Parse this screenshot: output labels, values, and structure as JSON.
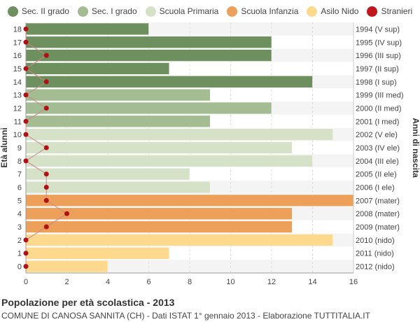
{
  "chart_data": {
    "type": "bar",
    "orientation": "horizontal",
    "title": "Popolazione per età scolastica - 2013",
    "subtitle": "COMUNE DI CANOSA SANNITA (CH) - Dati ISTAT 1° gennaio 2013 - Elaborazione TUTTITALIA.IT",
    "ylabel": "Età alunni",
    "y2label": "Anni di nascita",
    "xlim": [
      0,
      16
    ],
    "x_ticks": [
      0,
      2,
      4,
      6,
      8,
      10,
      12,
      14,
      16
    ],
    "grid": true,
    "legend_position": "top",
    "legend": [
      {
        "name": "Sec. II grado",
        "color": "#6e8f5e"
      },
      {
        "name": "Sec. I grado",
        "color": "#a3bc92"
      },
      {
        "name": "Scuola Primaria",
        "color": "#d6e2c8"
      },
      {
        "name": "Scuola Infanzia",
        "color": "#eda05a"
      },
      {
        "name": "Asilo Nido",
        "color": "#fdd98e"
      },
      {
        "name": "Stranieri",
        "color": "#c0161c"
      }
    ],
    "rows": [
      {
        "age": "18",
        "birth": "1994 (V sup)",
        "value": 6,
        "stranieri": 0,
        "group": 0
      },
      {
        "age": "17",
        "birth": "1995 (IV sup)",
        "value": 12,
        "stranieri": 0,
        "group": 0
      },
      {
        "age": "16",
        "birth": "1996 (III sup)",
        "value": 12,
        "stranieri": 1,
        "group": 0
      },
      {
        "age": "15",
        "birth": "1997 (II sup)",
        "value": 7,
        "stranieri": 0,
        "group": 0
      },
      {
        "age": "14",
        "birth": "1998 (I sup)",
        "value": 14,
        "stranieri": 1,
        "group": 0
      },
      {
        "age": "13",
        "birth": "1999 (III med)",
        "value": 9,
        "stranieri": 0,
        "group": 1
      },
      {
        "age": "12",
        "birth": "2000 (II med)",
        "value": 12,
        "stranieri": 1,
        "group": 1
      },
      {
        "age": "11",
        "birth": "2001 (I med)",
        "value": 9,
        "stranieri": 0,
        "group": 1
      },
      {
        "age": "10",
        "birth": "2002 (V ele)",
        "value": 15,
        "stranieri": 0,
        "group": 2
      },
      {
        "age": "9",
        "birth": "2003 (IV ele)",
        "value": 13,
        "stranieri": 1,
        "group": 2
      },
      {
        "age": "8",
        "birth": "2004 (III ele)",
        "value": 14,
        "stranieri": 0,
        "group": 2
      },
      {
        "age": "7",
        "birth": "2005 (II ele)",
        "value": 8,
        "stranieri": 1,
        "group": 2
      },
      {
        "age": "6",
        "birth": "2006 (I ele)",
        "value": 9,
        "stranieri": 1,
        "group": 2
      },
      {
        "age": "5",
        "birth": "2007 (mater)",
        "value": 16,
        "stranieri": 1,
        "group": 3
      },
      {
        "age": "4",
        "birth": "2008 (mater)",
        "value": 13,
        "stranieri": 2,
        "group": 3
      },
      {
        "age": "3",
        "birth": "2009 (mater)",
        "value": 13,
        "stranieri": 1,
        "group": 3
      },
      {
        "age": "2",
        "birth": "2010 (nido)",
        "value": 15,
        "stranieri": 0,
        "group": 4
      },
      {
        "age": "1",
        "birth": "2011 (nido)",
        "value": 7,
        "stranieri": 0,
        "group": 4
      },
      {
        "age": "0",
        "birth": "2012 (nido)",
        "value": 4,
        "stranieri": 0,
        "group": 4
      }
    ]
  }
}
